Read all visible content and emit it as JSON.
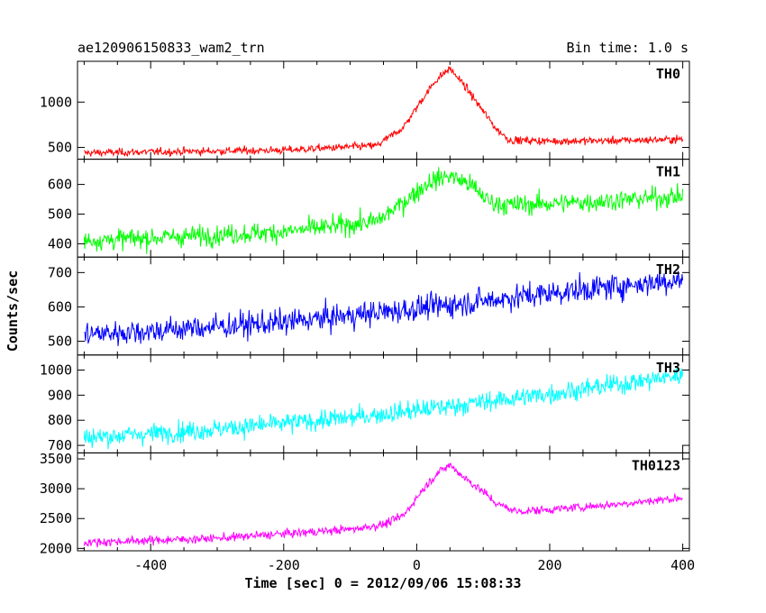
{
  "header": {
    "title": "ae120906150833_wam2_trn",
    "bin_time": "Bin time: 1.0 s"
  },
  "chart_data": {
    "type": "line",
    "xlabel": "Time [sec] 0 = 2012/09/06 15:08:33",
    "ylabel": "Counts/sec",
    "xlim": [
      -510,
      410
    ],
    "x_ticks": [
      -400,
      -200,
      0,
      200,
      400
    ],
    "x_range": [
      -500,
      400
    ],
    "bin_sec": 1.0,
    "grid": false,
    "panels": [
      {
        "name": "TH0",
        "color": "#ff0000",
        "ylim": [
          370,
          1450
        ],
        "y_ticks": [
          500,
          1000
        ],
        "profile": [
          [
            -500,
            440
          ],
          [
            -200,
            470
          ],
          [
            -60,
            520
          ],
          [
            -20,
            720
          ],
          [
            10,
            1050
          ],
          [
            30,
            1250
          ],
          [
            50,
            1370
          ],
          [
            70,
            1200
          ],
          [
            100,
            900
          ],
          [
            120,
            700
          ],
          [
            140,
            580
          ],
          [
            200,
            570
          ],
          [
            300,
            575
          ],
          [
            400,
            590
          ]
        ],
        "noise": 30
      },
      {
        "name": "TH1",
        "color": "#00ff00",
        "ylim": [
          355,
          685
        ],
        "y_ticks": [
          400,
          500,
          600
        ],
        "profile": [
          [
            -500,
            410
          ],
          [
            -200,
            440
          ],
          [
            -60,
            475
          ],
          [
            -20,
            540
          ],
          [
            20,
            610
          ],
          [
            50,
            630
          ],
          [
            80,
            600
          ],
          [
            110,
            540
          ],
          [
            140,
            530
          ],
          [
            250,
            540
          ],
          [
            400,
            560
          ]
        ],
        "noise": 24
      },
      {
        "name": "TH2",
        "color": "#0000ff",
        "ylim": [
          460,
          745
        ],
        "y_ticks": [
          500,
          600,
          700
        ],
        "profile": [
          [
            -500,
            520
          ],
          [
            -400,
            530
          ],
          [
            -200,
            555
          ],
          [
            0,
            595
          ],
          [
            200,
            640
          ],
          [
            400,
            680
          ]
        ],
        "noise": 26
      },
      {
        "name": "TH3",
        "color": "#00ffff",
        "ylim": [
          670,
          1060
        ],
        "y_ticks": [
          700,
          800,
          900,
          1000
        ],
        "profile": [
          [
            -500,
            730
          ],
          [
            -300,
            765
          ],
          [
            -100,
            810
          ],
          [
            0,
            840
          ],
          [
            200,
            905
          ],
          [
            400,
            980
          ]
        ],
        "noise": 28
      },
      {
        "name": "TH0123",
        "color": "#ff00ff",
        "ylim": [
          1960,
          3600
        ],
        "y_ticks": [
          2000,
          2500,
          3000,
          3500
        ],
        "profile": [
          [
            -500,
            2100
          ],
          [
            -300,
            2170
          ],
          [
            -100,
            2320
          ],
          [
            -50,
            2400
          ],
          [
            -20,
            2550
          ],
          [
            10,
            3000
          ],
          [
            30,
            3250
          ],
          [
            50,
            3400
          ],
          [
            70,
            3200
          ],
          [
            100,
            2950
          ],
          [
            120,
            2750
          ],
          [
            150,
            2620
          ],
          [
            200,
            2650
          ],
          [
            300,
            2740
          ],
          [
            400,
            2850
          ]
        ],
        "noise": 50
      }
    ]
  }
}
